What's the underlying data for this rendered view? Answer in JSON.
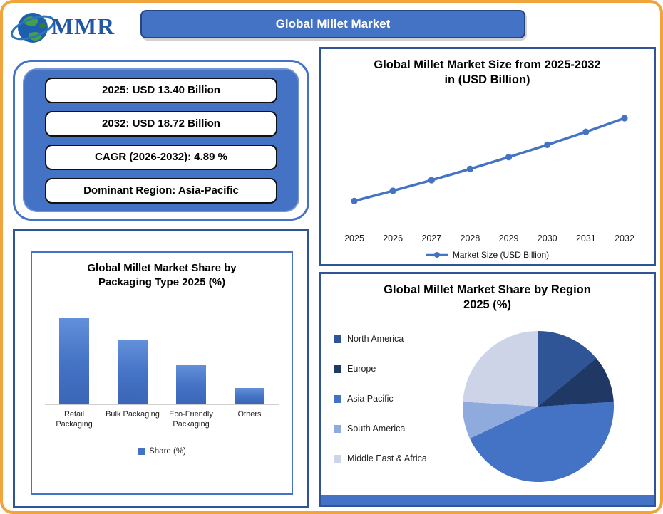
{
  "page": {
    "border_color": "#F2A43C",
    "accent": "#4472C4",
    "accent_dark": "#2F5597"
  },
  "logo": {
    "text": "MMR"
  },
  "header": {
    "title": "Global Millet Market"
  },
  "stats": {
    "items": [
      "2025: USD 13.40 Billion",
      "2032: USD 18.72 Billion",
      "CAGR (2026-2032): 4.89 %",
      "Dominant Region: Asia-Pacific"
    ]
  },
  "chart_data": [
    {
      "id": "market-size-line",
      "type": "line",
      "title": "Global Millet Market Size from 2025-2032 in (USD Billion)",
      "x": [
        2025,
        2026,
        2027,
        2028,
        2029,
        2030,
        2031,
        2032
      ],
      "series": [
        {
          "name": "Market Size (USD Billion)",
          "values": [
            13.4,
            14.06,
            14.74,
            15.46,
            16.22,
            17.01,
            17.84,
            18.72
          ]
        }
      ],
      "ylim": [
        12,
        20
      ],
      "grid": false,
      "legend_position": "bottom",
      "color": "#4472C4"
    },
    {
      "id": "packaging-share-bar",
      "type": "bar",
      "title": "Global Millet Market Share by Packaging Type 2025 (%)",
      "categories": [
        "Retail Packaging",
        "Bulk Packaging",
        "Eco-Friendly Packaging",
        "Others"
      ],
      "values": [
        45,
        33,
        20,
        8
      ],
      "legend": "Share (%)",
      "ylim": [
        0,
        50
      ],
      "grid": false,
      "color": "#4472C4"
    },
    {
      "id": "region-share-pie",
      "type": "pie",
      "title": "Global Millet Market Share by Region 2025 (%)",
      "slices": [
        {
          "label": "North America",
          "value": 14,
          "color": "#2F5597"
        },
        {
          "label": "Europe",
          "value": 10,
          "color": "#203864"
        },
        {
          "label": "Asia Pacific",
          "value": 44,
          "color": "#4472C4"
        },
        {
          "label": "South America",
          "value": 8,
          "color": "#8FAADC"
        },
        {
          "label": "Middle East & Africa",
          "value": 24,
          "color": "#CDD4E8"
        }
      ],
      "legend_position": "left"
    }
  ]
}
